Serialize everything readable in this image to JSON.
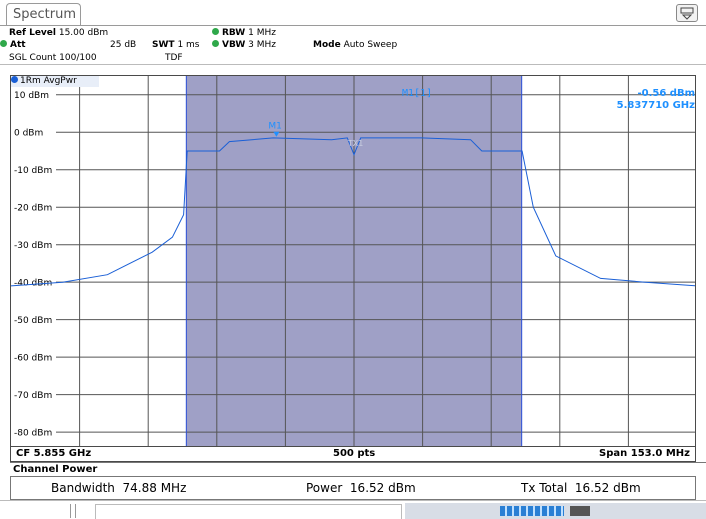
{
  "tab": {
    "label": "Spectrum"
  },
  "header": {
    "ref_level_label": "Ref Level",
    "ref_level_value": "15.00 dBm",
    "att_label": "Att",
    "att_value": "25 dB",
    "swt_label": "SWT",
    "swt_value": "1 ms",
    "rbw_label": "RBW",
    "rbw_value": "1 MHz",
    "vbw_label": "VBW",
    "vbw_value": "3 MHz",
    "mode_label": "Mode",
    "mode_value": "Auto Sweep",
    "sgl_count": "SGL Count 100/100",
    "tdf": "TDF"
  },
  "trace": {
    "label": "1Rm AvgPwr",
    "color": "#1a5fd6"
  },
  "marker": {
    "readout_name": "M1[1]",
    "readout_level": "-0.56 dBm",
    "readout_freq": "5.837710 GHz",
    "label": "M1",
    "channel_label": "TX1"
  },
  "chart_data": {
    "type": "line",
    "ylabel_unit": "dBm",
    "yticks": [
      "10 dBm",
      "0 dBm",
      "-10 dBm",
      "-20 dBm",
      "-30 dBm",
      "-40 dBm",
      "-50 dBm",
      "-60 dBm",
      "-70 dBm",
      "-80 dBm"
    ],
    "ytick_values": [
      10,
      0,
      -10,
      -20,
      -30,
      -40,
      -50,
      -60,
      -70,
      -80
    ],
    "ylim": [
      -88.5,
      15
    ],
    "xlim": [
      5.7785,
      5.9315
    ],
    "x_unit": "GHz",
    "channel_band": [
      5.8176,
      5.8924
    ],
    "series": [
      {
        "x": [
          5.7785,
          5.79,
          5.8,
          5.81,
          5.8145,
          5.817,
          5.8178,
          5.825,
          5.8272,
          5.837,
          5.85,
          5.8535,
          5.855,
          5.8565,
          5.87,
          5.881,
          5.8835,
          5.8915,
          5.8925,
          5.895,
          5.9,
          5.91,
          5.92,
          5.9315
        ],
        "y": [
          -41,
          -40,
          -38,
          -32,
          -28,
          -22,
          -5,
          -5,
          -2.5,
          -1.5,
          -2,
          -1.5,
          -6,
          -1.5,
          -1.5,
          -2,
          -5,
          -5,
          -5,
          -20,
          -33,
          -39,
          -40,
          -41
        ]
      }
    ],
    "grid": true
  },
  "footer": {
    "cf": "CF 5.855 GHz",
    "pts": "500 pts",
    "span": "Span 153.0 MHz"
  },
  "channel_power": {
    "title": "Channel Power",
    "bandwidth_label": "Bandwidth",
    "bandwidth_value": "74.88 MHz",
    "power_label": "Power",
    "power_value": "16.52 dBm",
    "tx_total_label": "Tx Total",
    "tx_total_value": "16.52 dBm"
  },
  "colors": {
    "band_fill": "#9fa0c6",
    "grid": "#555555",
    "trace": "#1a5fd6",
    "marker_text": "#1e90ff"
  }
}
